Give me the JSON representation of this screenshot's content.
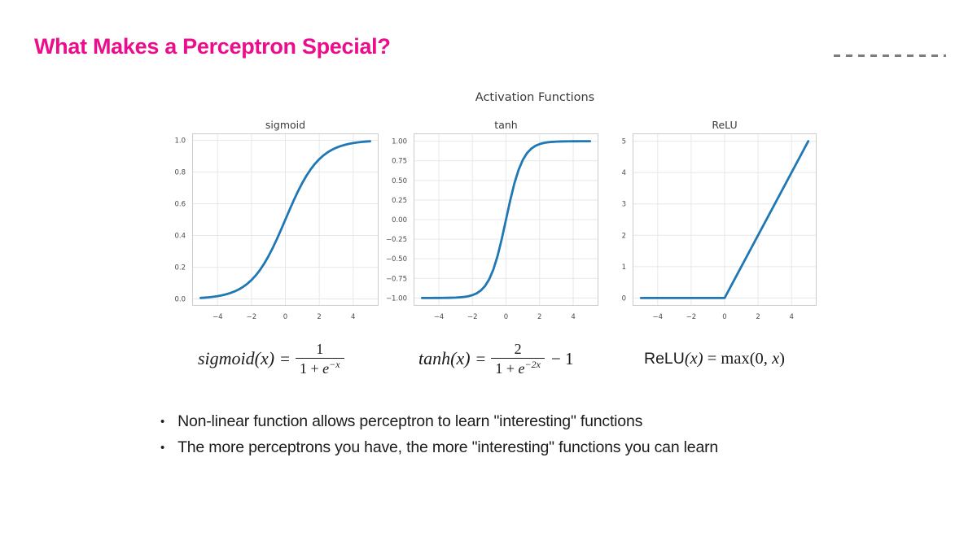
{
  "slide": {
    "title": "What Makes a Perceptron Special?",
    "title_color": "#EB0D8B",
    "logo_fragment": "dashed-line",
    "logo_dash_color": "#7d7d7d"
  },
  "figure": {
    "suptitle": "Activation Functions"
  },
  "chart_data": [
    {
      "type": "line",
      "title": "sigmoid",
      "line_color": "#1f77b4",
      "grid": true,
      "xlim": [
        -5.5,
        5.5
      ],
      "ylim": [
        -0.043,
        1.043
      ],
      "xticks": {
        "values": [
          -4,
          -2,
          0,
          2,
          4
        ],
        "labels": [
          "−4",
          "−2",
          "0",
          "2",
          "4"
        ]
      },
      "yticks": {
        "values": [
          0.0,
          0.2,
          0.4,
          0.6,
          0.8,
          1.0
        ],
        "labels": [
          "0.0",
          "0.2",
          "0.4",
          "0.6",
          "0.8",
          "1.0"
        ]
      },
      "x": [
        -5,
        -4.75,
        -4.5,
        -4.25,
        -4,
        -3.75,
        -3.5,
        -3.25,
        -3,
        -2.75,
        -2.5,
        -2.25,
        -2,
        -1.75,
        -1.5,
        -1.25,
        -1,
        -0.75,
        -0.5,
        -0.25,
        0,
        0.25,
        0.5,
        0.75,
        1,
        1.25,
        1.5,
        1.75,
        2,
        2.25,
        2.5,
        2.75,
        3,
        3.25,
        3.5,
        3.75,
        4,
        4.25,
        4.5,
        4.75,
        5
      ],
      "y": [
        0.0067,
        0.0086,
        0.011,
        0.0141,
        0.018,
        0.023,
        0.0293,
        0.0374,
        0.0474,
        0.0601,
        0.0759,
        0.0953,
        0.1192,
        0.148,
        0.1824,
        0.2227,
        0.2689,
        0.3208,
        0.3775,
        0.4378,
        0.5,
        0.5622,
        0.6225,
        0.6792,
        0.7311,
        0.7773,
        0.8176,
        0.852,
        0.8808,
        0.9047,
        0.9241,
        0.9399,
        0.9526,
        0.9626,
        0.9707,
        0.977,
        0.982,
        0.9859,
        0.989,
        0.9914,
        0.9933
      ]
    },
    {
      "type": "line",
      "title": "tanh",
      "line_color": "#1f77b4",
      "grid": true,
      "xlim": [
        -5.5,
        5.5
      ],
      "ylim": [
        -1.1,
        1.1
      ],
      "xticks": {
        "values": [
          -4,
          -2,
          0,
          2,
          4
        ],
        "labels": [
          "−4",
          "−2",
          "0",
          "2",
          "4"
        ]
      },
      "yticks": {
        "values": [
          -1.0,
          -0.75,
          -0.5,
          -0.25,
          0.0,
          0.25,
          0.5,
          0.75,
          1.0
        ],
        "labels": [
          "−1.00",
          "−0.75",
          "−0.50",
          "−0.25",
          "0.00",
          "0.25",
          "0.50",
          "0.75",
          "1.00"
        ]
      },
      "x": [
        -5,
        -4.75,
        -4.5,
        -4.25,
        -4,
        -3.75,
        -3.5,
        -3.25,
        -3,
        -2.75,
        -2.5,
        -2.25,
        -2,
        -1.75,
        -1.5,
        -1.25,
        -1,
        -0.75,
        -0.5,
        -0.25,
        0,
        0.25,
        0.5,
        0.75,
        1,
        1.25,
        1.5,
        1.75,
        2,
        2.25,
        2.5,
        2.75,
        3,
        3.25,
        3.5,
        3.75,
        4,
        4.25,
        4.5,
        4.75,
        5
      ],
      "y": [
        -0.9999,
        -0.9998,
        -0.9998,
        -0.9996,
        -0.9993,
        -0.9989,
        -0.9982,
        -0.997,
        -0.9951,
        -0.9919,
        -0.9866,
        -0.978,
        -0.964,
        -0.9414,
        -0.9051,
        -0.8483,
        -0.7616,
        -0.6351,
        -0.4621,
        -0.2449,
        0,
        0.2449,
        0.4621,
        0.6351,
        0.7616,
        0.8483,
        0.9051,
        0.9414,
        0.964,
        0.978,
        0.9866,
        0.9919,
        0.9951,
        0.997,
        0.9982,
        0.9989,
        0.9993,
        0.9996,
        0.9998,
        0.9998,
        0.9999
      ]
    },
    {
      "type": "line",
      "title": "ReLU",
      "line_color": "#1f77b4",
      "grid": true,
      "xlim": [
        -5.5,
        5.5
      ],
      "ylim": [
        -0.25,
        5.25
      ],
      "xticks": {
        "values": [
          -4,
          -2,
          0,
          2,
          4
        ],
        "labels": [
          "−4",
          "−2",
          "0",
          "2",
          "4"
        ]
      },
      "yticks": {
        "values": [
          0,
          1,
          2,
          3,
          4,
          5
        ],
        "labels": [
          "0",
          "1",
          "2",
          "3",
          "4",
          "5"
        ]
      },
      "x": [
        -5,
        0,
        5
      ],
      "y": [
        0,
        0,
        5
      ]
    }
  ],
  "formulas": {
    "sigmoid": {
      "lhs": "sigmoid(x)",
      "eq": "=",
      "num": "1",
      "den_pre": "1 + ",
      "den_e": "e",
      "den_sup": "−x"
    },
    "tanh": {
      "lhs": "tanh(x)",
      "eq": "=",
      "num": "2",
      "den_pre": "1 + ",
      "den_e": "e",
      "den_sup": "−2x",
      "tail": "− 1"
    },
    "relu": {
      "name": "ReLU",
      "arg": "(x)",
      "mid": " = max(0, ",
      "var": "x",
      "close": ")"
    }
  },
  "bullets": [
    "Non-linear function allows perceptron to learn \"interesting\" functions",
    "The more perceptrons you have, the more \"interesting\" functions you can learn"
  ]
}
